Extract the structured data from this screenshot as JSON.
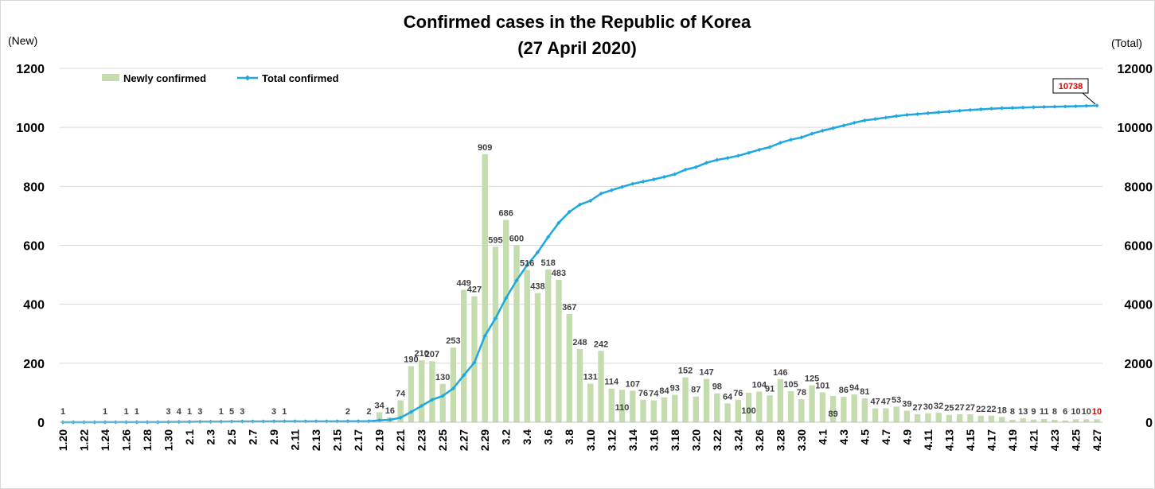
{
  "chart_data": {
    "type": "bar+line",
    "title_line1": "Confirmed cases in the Republic of Korea",
    "title_line2": "(27 April 2020)",
    "left_unit": "(New)",
    "right_unit": "(Total)",
    "ylim_left": [
      0,
      1200
    ],
    "ylim_right": [
      0,
      12000
    ],
    "yticks_left": [
      "0",
      "200",
      "400",
      "600",
      "800",
      "1000",
      "1200"
    ],
    "yticks_right": [
      "0",
      "2000",
      "4000",
      "6000",
      "8000",
      "10000",
      "12000"
    ],
    "grid": true,
    "legend_position": "top-left",
    "x": [
      "1.20",
      "1.21",
      "1.22",
      "1.23",
      "1.24",
      "1.25",
      "1.26",
      "1.27",
      "1.28",
      "1.29",
      "1.30",
      "1.31",
      "2.1",
      "2.2",
      "2.3",
      "2.4",
      "2.5",
      "2.6",
      "2.7",
      "2.8",
      "2.9",
      "2.10",
      "2.11",
      "2.12",
      "2.13",
      "2.14",
      "2.15",
      "2.16",
      "2.17",
      "2.18",
      "2.19",
      "2.20",
      "2.21",
      "2.22",
      "2.23",
      "2.24",
      "2.25",
      "2.26",
      "2.27",
      "2.28",
      "2.29",
      "3.1",
      "3.2",
      "3.3",
      "3.4",
      "3.5",
      "3.6",
      "3.7",
      "3.8",
      "3.9",
      "3.10",
      "3.11",
      "3.12",
      "3.13",
      "3.14",
      "3.15",
      "3.16",
      "3.17",
      "3.18",
      "3.19",
      "3.20",
      "3.21",
      "3.22",
      "3.23",
      "3.24",
      "3.25",
      "3.26",
      "3.27",
      "3.28",
      "3.29",
      "3.30",
      "3.31",
      "4.1",
      "4.2",
      "4.3",
      "4.4",
      "4.5",
      "4.6",
      "4.7",
      "4.8",
      "4.9",
      "4.10",
      "4.11",
      "4.12",
      "4.13",
      "4.14",
      "4.15",
      "4.16",
      "4.17",
      "4.18",
      "4.19",
      "4.20",
      "4.21",
      "4.22",
      "4.23",
      "4.24",
      "4.25",
      "4.26",
      "4.27"
    ],
    "x_tick_labels": [
      "1.20",
      "1.22",
      "1.24",
      "1.26",
      "1.28",
      "1.30",
      "2.1",
      "2.3",
      "2.5",
      "2.7",
      "2.9",
      "2.11",
      "2.13",
      "2.15",
      "2.17",
      "2.19",
      "2.21",
      "2.23",
      "2.25",
      "2.27",
      "2.29",
      "3.2",
      "3.4",
      "3.6",
      "3.8",
      "3.10",
      "3.12",
      "3.14",
      "3.16",
      "3.18",
      "3.20",
      "3.22",
      "3.24",
      "3.26",
      "3.28",
      "3.30",
      "4.1",
      "4.3",
      "4.5",
      "4.7",
      "4.9",
      "4.11",
      "4.13",
      "4.15",
      "4.17",
      "4.19",
      "4.21",
      "4.23",
      "4.25",
      "4.27"
    ],
    "series": [
      {
        "name": "Newly confirmed",
        "type": "bar",
        "color": "#c4dcae",
        "values": [
          1,
          0,
          0,
          0,
          1,
          0,
          1,
          1,
          0,
          0,
          3,
          4,
          1,
          3,
          0,
          1,
          5,
          3,
          0,
          0,
          3,
          1,
          0,
          0,
          0,
          0,
          0,
          2,
          0,
          2,
          34,
          16,
          74,
          190,
          210,
          207,
          130,
          253,
          449,
          427,
          909,
          595,
          686,
          600,
          516,
          438,
          518,
          483,
          367,
          248,
          131,
          242,
          114,
          110,
          107,
          76,
          74,
          84,
          93,
          152,
          87,
          147,
          98,
          64,
          76,
          100,
          104,
          91,
          146,
          105,
          78,
          125,
          101,
          89,
          86,
          94,
          81,
          47,
          47,
          53,
          39,
          27,
          30,
          32,
          25,
          27,
          27,
          22,
          22,
          18,
          8,
          13,
          9,
          11,
          8,
          6,
          10,
          10,
          10
        ]
      },
      {
        "name": "Total confirmed",
        "type": "line",
        "color": "#1ea7e1",
        "values": [
          1,
          1,
          1,
          1,
          2,
          2,
          3,
          4,
          4,
          4,
          7,
          11,
          12,
          15,
          15,
          16,
          21,
          24,
          24,
          24,
          27,
          28,
          28,
          28,
          28,
          28,
          28,
          30,
          30,
          31,
          65,
          81,
          155,
          345,
          555,
          762,
          892,
          1145,
          1594,
          2021,
          2930,
          3525,
          4211,
          4811,
          5327,
          5765,
          6283,
          6766,
          7133,
          7381,
          7512,
          7754,
          7868,
          7978,
          8085,
          8161,
          8235,
          8319,
          8412,
          8564,
          8651,
          8798,
          8896,
          8960,
          9036,
          9136,
          9240,
          9331,
          9477,
          9582,
          9660,
          9785,
          9886,
          9975,
          10061,
          10155,
          10236,
          10283,
          10330,
          10383,
          10422,
          10449,
          10479,
          10511,
          10536,
          10563,
          10590,
          10612,
          10634,
          10652,
          10660,
          10673,
          10682,
          10693,
          10701,
          10707,
          10717,
          10728,
          10738
        ]
      }
    ],
    "bar_value_labels": {
      "0": "1",
      "4": "1",
      "6": "1",
      "7": "1",
      "10": "3",
      "11": "4",
      "12": "1",
      "13": "3",
      "15": "1",
      "16": "5",
      "17": "3",
      "20": "3",
      "21": "1",
      "27": "2",
      "29": "2",
      "30": "34",
      "31": "16",
      "32": "74",
      "33": "190",
      "34": "210",
      "35": "207",
      "36": "130",
      "37": "253",
      "38": "449",
      "39": "427",
      "40": "909",
      "41": "595",
      "42": "686",
      "43": "600",
      "44": "516",
      "45": "438",
      "46": "518",
      "47": "483",
      "48": "367",
      "49": "248",
      "50": "131",
      "51": "242",
      "52": "114",
      "53": "110",
      "54": "107",
      "55": "76",
      "56": "74",
      "57": "84",
      "58": "93",
      "59": "152",
      "60": "87",
      "61": "147",
      "62": "98",
      "63": "64",
      "64": "76",
      "65": "100",
      "66": "104",
      "67": "91",
      "68": "146",
      "69": "105",
      "70": "78",
      "71": "125",
      "72": "101",
      "73": "89",
      "74": "86",
      "75": "94",
      "76": "81",
      "77": "47",
      "78": "47",
      "79": "53",
      "80": "39",
      "81": "27",
      "82": "30",
      "83": "32",
      "84": "25",
      "85": "27",
      "86": "27",
      "87": "22",
      "88": "22",
      "89": "18",
      "90": "8",
      "91": "13",
      "92": "9",
      "93": "11",
      "94": "8",
      "95": "6",
      "96": "10",
      "97": "10",
      "98": "10"
    },
    "low_label_indices": [
      53,
      65,
      73
    ],
    "highlight_label_index": 98,
    "highlight_label_color": "#e00000",
    "total_callout": "10738",
    "callout_color": "#e00000"
  }
}
